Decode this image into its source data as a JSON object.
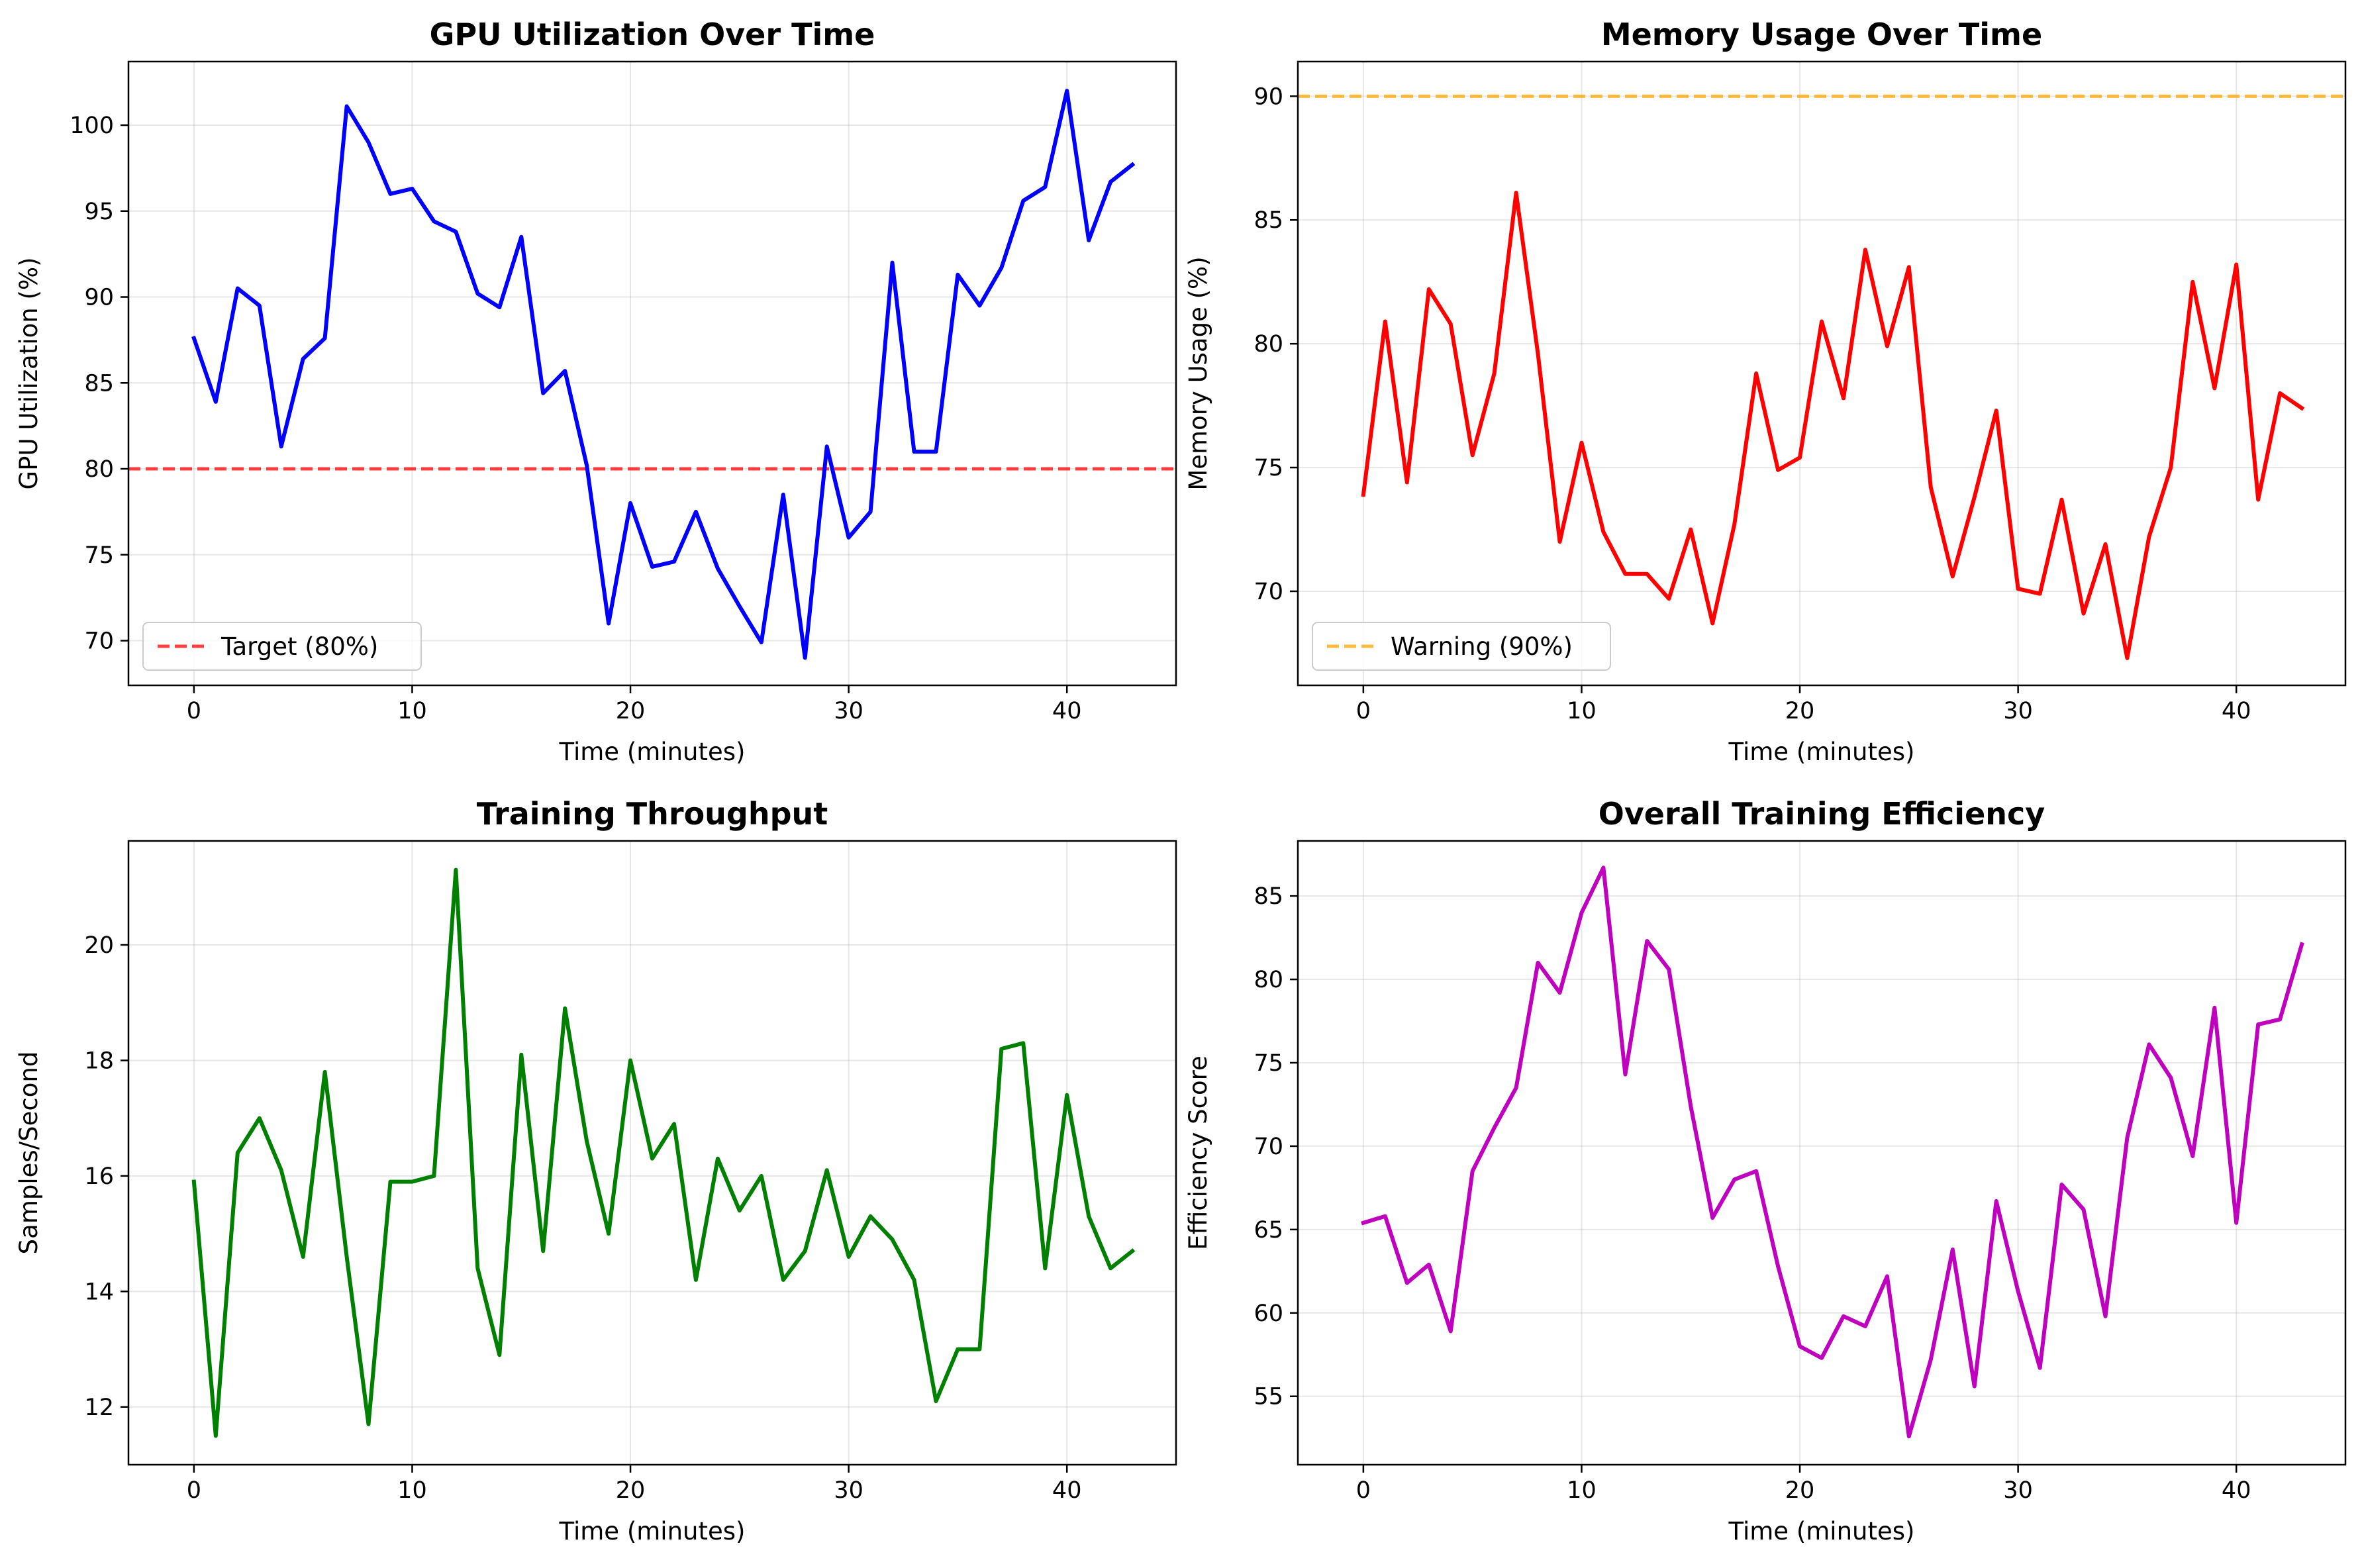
{
  "chart_data": [
    {
      "type": "line",
      "title": "GPU Utilization Over Time",
      "xlabel": "Time (minutes)",
      "ylabel": "GPU Utilization (%)",
      "xlim": [
        -3,
        45
      ],
      "ylim": [
        67.4,
        103.7
      ],
      "xticks": [
        0,
        10,
        20,
        30,
        40
      ],
      "yticks": [
        70,
        75,
        80,
        85,
        90,
        95,
        100
      ],
      "grid": true,
      "legend_placement": "lower-left",
      "series": [
        {
          "color": "#0000ff",
          "x": [
            0,
            1,
            2,
            3,
            4,
            5,
            6,
            7,
            8,
            9,
            10,
            11,
            12,
            13,
            14,
            15,
            16,
            17,
            18,
            19,
            20,
            21,
            22,
            23,
            24,
            25,
            26,
            27,
            28,
            29,
            30,
            31,
            32,
            33,
            34,
            35,
            36,
            37,
            38,
            39,
            40,
            41,
            42,
            43
          ],
          "values": [
            87.6,
            83.9,
            90.5,
            89.5,
            81.3,
            86.4,
            87.6,
            101.1,
            99.0,
            96.0,
            96.3,
            94.4,
            93.8,
            90.2,
            89.4,
            93.5,
            84.4,
            85.7,
            80.2,
            71.0,
            78.0,
            74.3,
            74.6,
            77.5,
            74.2,
            72.0,
            69.9,
            78.5,
            69.0,
            81.3,
            76.0,
            77.5,
            92.0,
            81.0,
            81.0,
            91.3,
            89.5,
            91.7,
            95.6,
            96.4,
            102.0,
            93.3,
            96.7,
            97.7
          ]
        }
      ],
      "reference_line": {
        "value": 80,
        "label": "Target (80%)",
        "color": "#ff0000",
        "style": "dashed"
      }
    },
    {
      "type": "line",
      "title": "Memory Usage Over Time",
      "xlabel": "Time (minutes)",
      "ylabel": "Memory Usage (%)",
      "xlim": [
        -3,
        45
      ],
      "ylim": [
        66.2,
        91.4
      ],
      "xticks": [
        0,
        10,
        20,
        30,
        40
      ],
      "yticks": [
        70,
        75,
        80,
        85,
        90
      ],
      "grid": true,
      "legend_placement": "lower-left",
      "series": [
        {
          "color": "#ff0000",
          "x": [
            0,
            1,
            2,
            3,
            4,
            5,
            6,
            7,
            8,
            9,
            10,
            11,
            12,
            13,
            14,
            15,
            16,
            17,
            18,
            19,
            20,
            21,
            22,
            23,
            24,
            25,
            26,
            27,
            28,
            29,
            30,
            31,
            32,
            33,
            34,
            35,
            36,
            37,
            38,
            39,
            40,
            41,
            42,
            43
          ],
          "values": [
            73.9,
            80.9,
            74.4,
            82.2,
            80.8,
            75.5,
            78.8,
            86.1,
            79.6,
            72.0,
            76.0,
            72.4,
            70.7,
            70.7,
            69.7,
            72.5,
            68.7,
            72.7,
            78.8,
            74.9,
            75.4,
            80.9,
            77.8,
            83.8,
            79.9,
            83.1,
            74.2,
            70.6,
            73.8,
            77.3,
            70.1,
            69.9,
            73.7,
            69.1,
            71.9,
            67.3,
            72.2,
            75.0,
            82.5,
            78.2,
            83.2,
            73.7,
            78.0,
            77.4
          ]
        }
      ],
      "reference_line": {
        "value": 90,
        "label": "Warning (90%)",
        "color": "#ffa500",
        "style": "dashed"
      }
    },
    {
      "type": "line",
      "title": "Training Throughput",
      "xlabel": "Time (minutes)",
      "ylabel": "Samples/Second",
      "xlim": [
        -3,
        45
      ],
      "ylim": [
        11.0,
        21.8
      ],
      "xticks": [
        0,
        10,
        20,
        30,
        40
      ],
      "yticks": [
        12,
        14,
        16,
        18,
        20
      ],
      "grid": true,
      "series": [
        {
          "color": "#008000",
          "x": [
            0,
            1,
            2,
            3,
            4,
            5,
            6,
            7,
            8,
            9,
            10,
            11,
            12,
            13,
            14,
            15,
            16,
            17,
            18,
            19,
            20,
            21,
            22,
            23,
            24,
            25,
            26,
            27,
            28,
            29,
            30,
            31,
            32,
            33,
            34,
            35,
            36,
            37,
            38,
            39,
            40,
            41,
            42,
            43
          ],
          "values": [
            15.9,
            11.5,
            16.4,
            17.0,
            16.1,
            14.6,
            17.8,
            14.6,
            11.7,
            15.9,
            15.9,
            16.0,
            21.3,
            14.4,
            12.9,
            18.1,
            14.7,
            18.9,
            16.6,
            15.0,
            18.0,
            16.3,
            16.9,
            14.2,
            16.3,
            15.4,
            16.0,
            14.2,
            14.7,
            16.1,
            14.6,
            15.3,
            14.9,
            14.2,
            12.1,
            13.0,
            13.0,
            18.2,
            18.3,
            14.4,
            17.4,
            15.3,
            14.4,
            14.7
          ]
        }
      ]
    },
    {
      "type": "line",
      "title": "Overall Training Efficiency",
      "xlabel": "Time (minutes)",
      "ylabel": "Efficiency Score",
      "xlim": [
        -3,
        45
      ],
      "ylim": [
        50.9,
        88.3
      ],
      "xticks": [
        0,
        10,
        20,
        30,
        40
      ],
      "yticks": [
        55,
        60,
        65,
        70,
        75,
        80,
        85
      ],
      "grid": true,
      "series": [
        {
          "color": "#bf00bf",
          "x": [
            0,
            1,
            2,
            3,
            4,
            5,
            6,
            7,
            8,
            9,
            10,
            11,
            12,
            13,
            14,
            15,
            16,
            17,
            18,
            19,
            20,
            21,
            22,
            23,
            24,
            25,
            26,
            27,
            28,
            29,
            30,
            31,
            32,
            33,
            34,
            35,
            36,
            37,
            38,
            39,
            40,
            41,
            42,
            43
          ],
          "values": [
            65.4,
            65.8,
            61.8,
            62.9,
            58.9,
            68.5,
            71.1,
            73.5,
            81.0,
            79.2,
            84.0,
            86.7,
            74.3,
            82.3,
            80.6,
            72.4,
            65.7,
            68.0,
            68.5,
            62.8,
            58.0,
            57.3,
            59.8,
            59.2,
            62.2,
            52.6,
            57.2,
            63.8,
            55.6,
            66.7,
            61.3,
            56.7,
            67.7,
            66.2,
            59.8,
            70.5,
            76.1,
            74.1,
            69.4,
            78.3,
            65.4,
            77.3,
            77.6,
            82.1
          ]
        }
      ]
    }
  ]
}
